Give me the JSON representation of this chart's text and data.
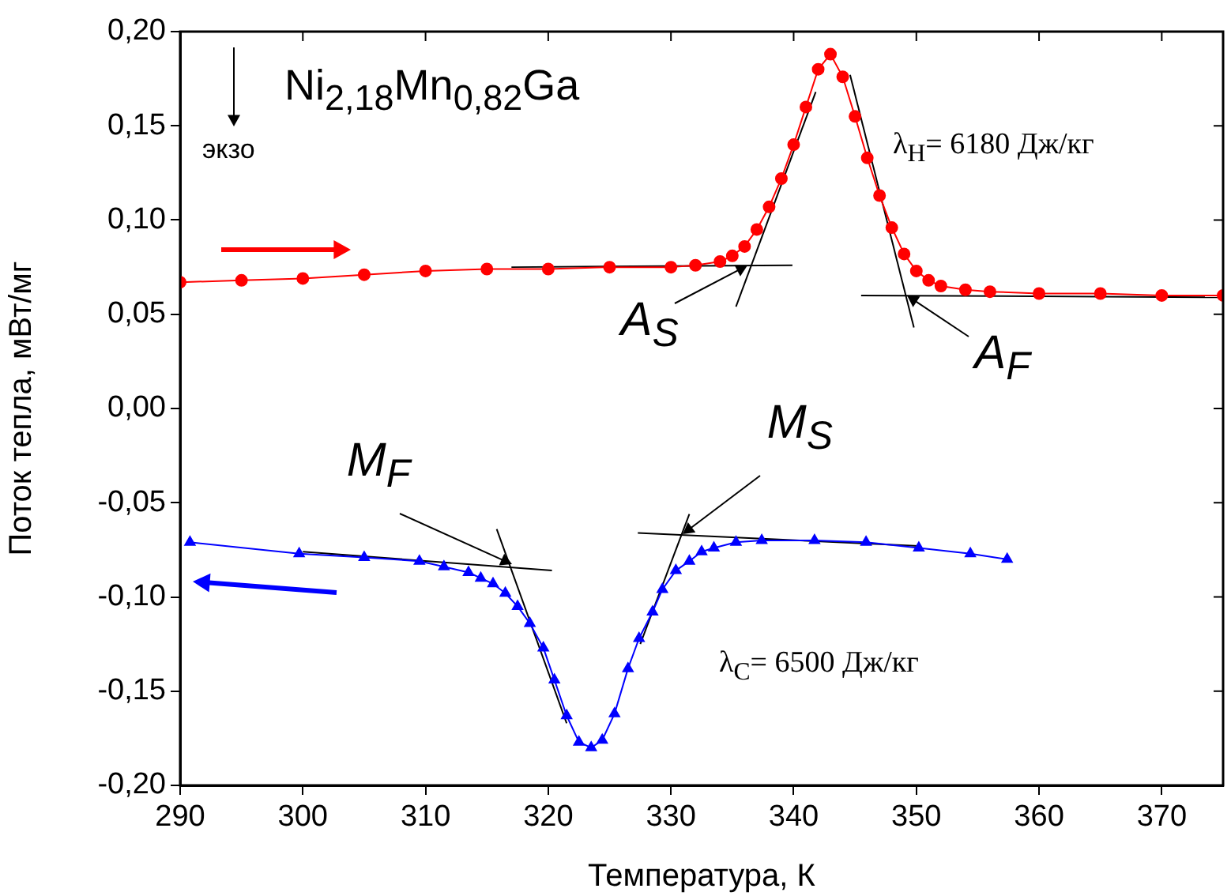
{
  "chart_data": {
    "type": "line",
    "xlabel": "Температура, К",
    "ylabel": "Поток тепла, мВт/мг",
    "xlim": [
      290,
      375
    ],
    "xticks": [
      290,
      300,
      310,
      320,
      330,
      340,
      350,
      360,
      370
    ],
    "ylim": [
      -0.2,
      0.2
    ],
    "yticks": [
      {
        "value": -0.2,
        "label": "-0,20"
      },
      {
        "value": -0.15,
        "label": "-0,15"
      },
      {
        "value": -0.1,
        "label": "-0,10"
      },
      {
        "value": -0.05,
        "label": "-0,05"
      },
      {
        "value": 0,
        "label": "0,00"
      },
      {
        "value": 0.05,
        "label": "0,05"
      },
      {
        "value": 0.1,
        "label": "0,10"
      },
      {
        "value": 0.15,
        "label": "0,15"
      },
      {
        "value": 0.2,
        "label": "0,20"
      }
    ],
    "series": [
      {
        "color": "#ff0000",
        "marker": "circle",
        "x": [
          290,
          295,
          300,
          305,
          310,
          315,
          320,
          325,
          330,
          332,
          334,
          335,
          336,
          337,
          338,
          339,
          340,
          341,
          342,
          343,
          344,
          345,
          346,
          347,
          348,
          349,
          350,
          351,
          352,
          354,
          356,
          360,
          365,
          370,
          375
        ],
        "values": [
          0.067,
          0.068,
          0.069,
          0.071,
          0.073,
          0.074,
          0.074,
          0.075,
          0.075,
          0.076,
          0.078,
          0.081,
          0.086,
          0.095,
          0.107,
          0.122,
          0.14,
          0.16,
          0.18,
          0.188,
          0.176,
          0.155,
          0.133,
          0.113,
          0.096,
          0.082,
          0.073,
          0.068,
          0.065,
          0.063,
          0.062,
          0.061,
          0.061,
          0.06,
          0.06
        ]
      },
      {
        "color": "#0000ff",
        "marker": "triangle",
        "x": [
          290.8,
          299.7,
          305,
          309.5,
          311.5,
          313.5,
          314.5,
          315.5,
          316.5,
          317.5,
          318.5,
          319.6,
          320.5,
          321.5,
          322.5,
          323.5,
          324.4,
          325.4,
          326.5,
          327.4,
          328.5,
          329.3,
          330.4,
          331.5,
          332.5,
          333.5,
          335.3,
          337.4,
          341.7,
          345.9,
          350.2,
          354.4,
          357.4
        ],
        "values": [
          -0.071,
          -0.077,
          -0.079,
          -0.081,
          -0.084,
          -0.087,
          -0.09,
          -0.093,
          -0.098,
          -0.105,
          -0.114,
          -0.127,
          -0.144,
          -0.163,
          -0.177,
          -0.18,
          -0.176,
          -0.162,
          -0.138,
          -0.122,
          -0.108,
          -0.096,
          -0.086,
          -0.081,
          -0.076,
          -0.074,
          -0.071,
          -0.07,
          -0.07,
          -0.071,
          -0.074,
          -0.077,
          -0.08
        ]
      },
      {
        "type": "line",
        "color": "#000000",
        "marker": "none",
        "x": [
          317,
          339.9
        ],
        "values": [
          0.075,
          0.076
        ]
      },
      {
        "type": "line",
        "color": "#000000",
        "marker": "none",
        "x": [
          335.3,
          341.8
        ],
        "values": [
          0.054,
          0.168
        ]
      },
      {
        "type": "line",
        "color": "#000000",
        "marker": "none",
        "x": [
          344.6,
          349.8
        ],
        "values": [
          0.177,
          0.043
        ]
      },
      {
        "type": "line",
        "color": "#000000",
        "marker": "none",
        "x": [
          345.5,
          375
        ],
        "values": [
          0.06,
          0.059
        ]
      },
      {
        "type": "line",
        "color": "#000000",
        "marker": "none",
        "x": [
          300,
          320.3
        ],
        "values": [
          -0.076,
          -0.086
        ]
      },
      {
        "type": "line",
        "color": "#000000",
        "marker": "none",
        "x": [
          315.8,
          321.5
        ],
        "values": [
          -0.064,
          -0.167
        ]
      },
      {
        "type": "line",
        "color": "#000000",
        "marker": "none",
        "x": [
          331.5,
          327.5
        ],
        "values": [
          -0.056,
          -0.125
        ]
      },
      {
        "type": "line",
        "color": "#000000",
        "marker": "none",
        "x": [
          327.3,
          350.2
        ],
        "values": [
          -0.066,
          -0.073
        ]
      }
    ],
    "annotations": [
      "Ni$_{2,18}$Mn$_{0,82}$Ga",
      "экзо",
      "λ$_{H}$= 6180 Дж/кг",
      "λ$_{C}$= 6500 Дж/кг",
      {
        "text": "A$_{S}$",
        "x": 336.2,
        "y": 0.076
      },
      {
        "text": "A$_{F}$",
        "x": 349.2,
        "y": 0.06
      },
      {
        "text": "M$_{F}$",
        "x": 317.1,
        "y": -0.083
      },
      {
        "text": "M$_{S}$",
        "x": 331,
        "y": -0.067
      }
    ]
  }
}
